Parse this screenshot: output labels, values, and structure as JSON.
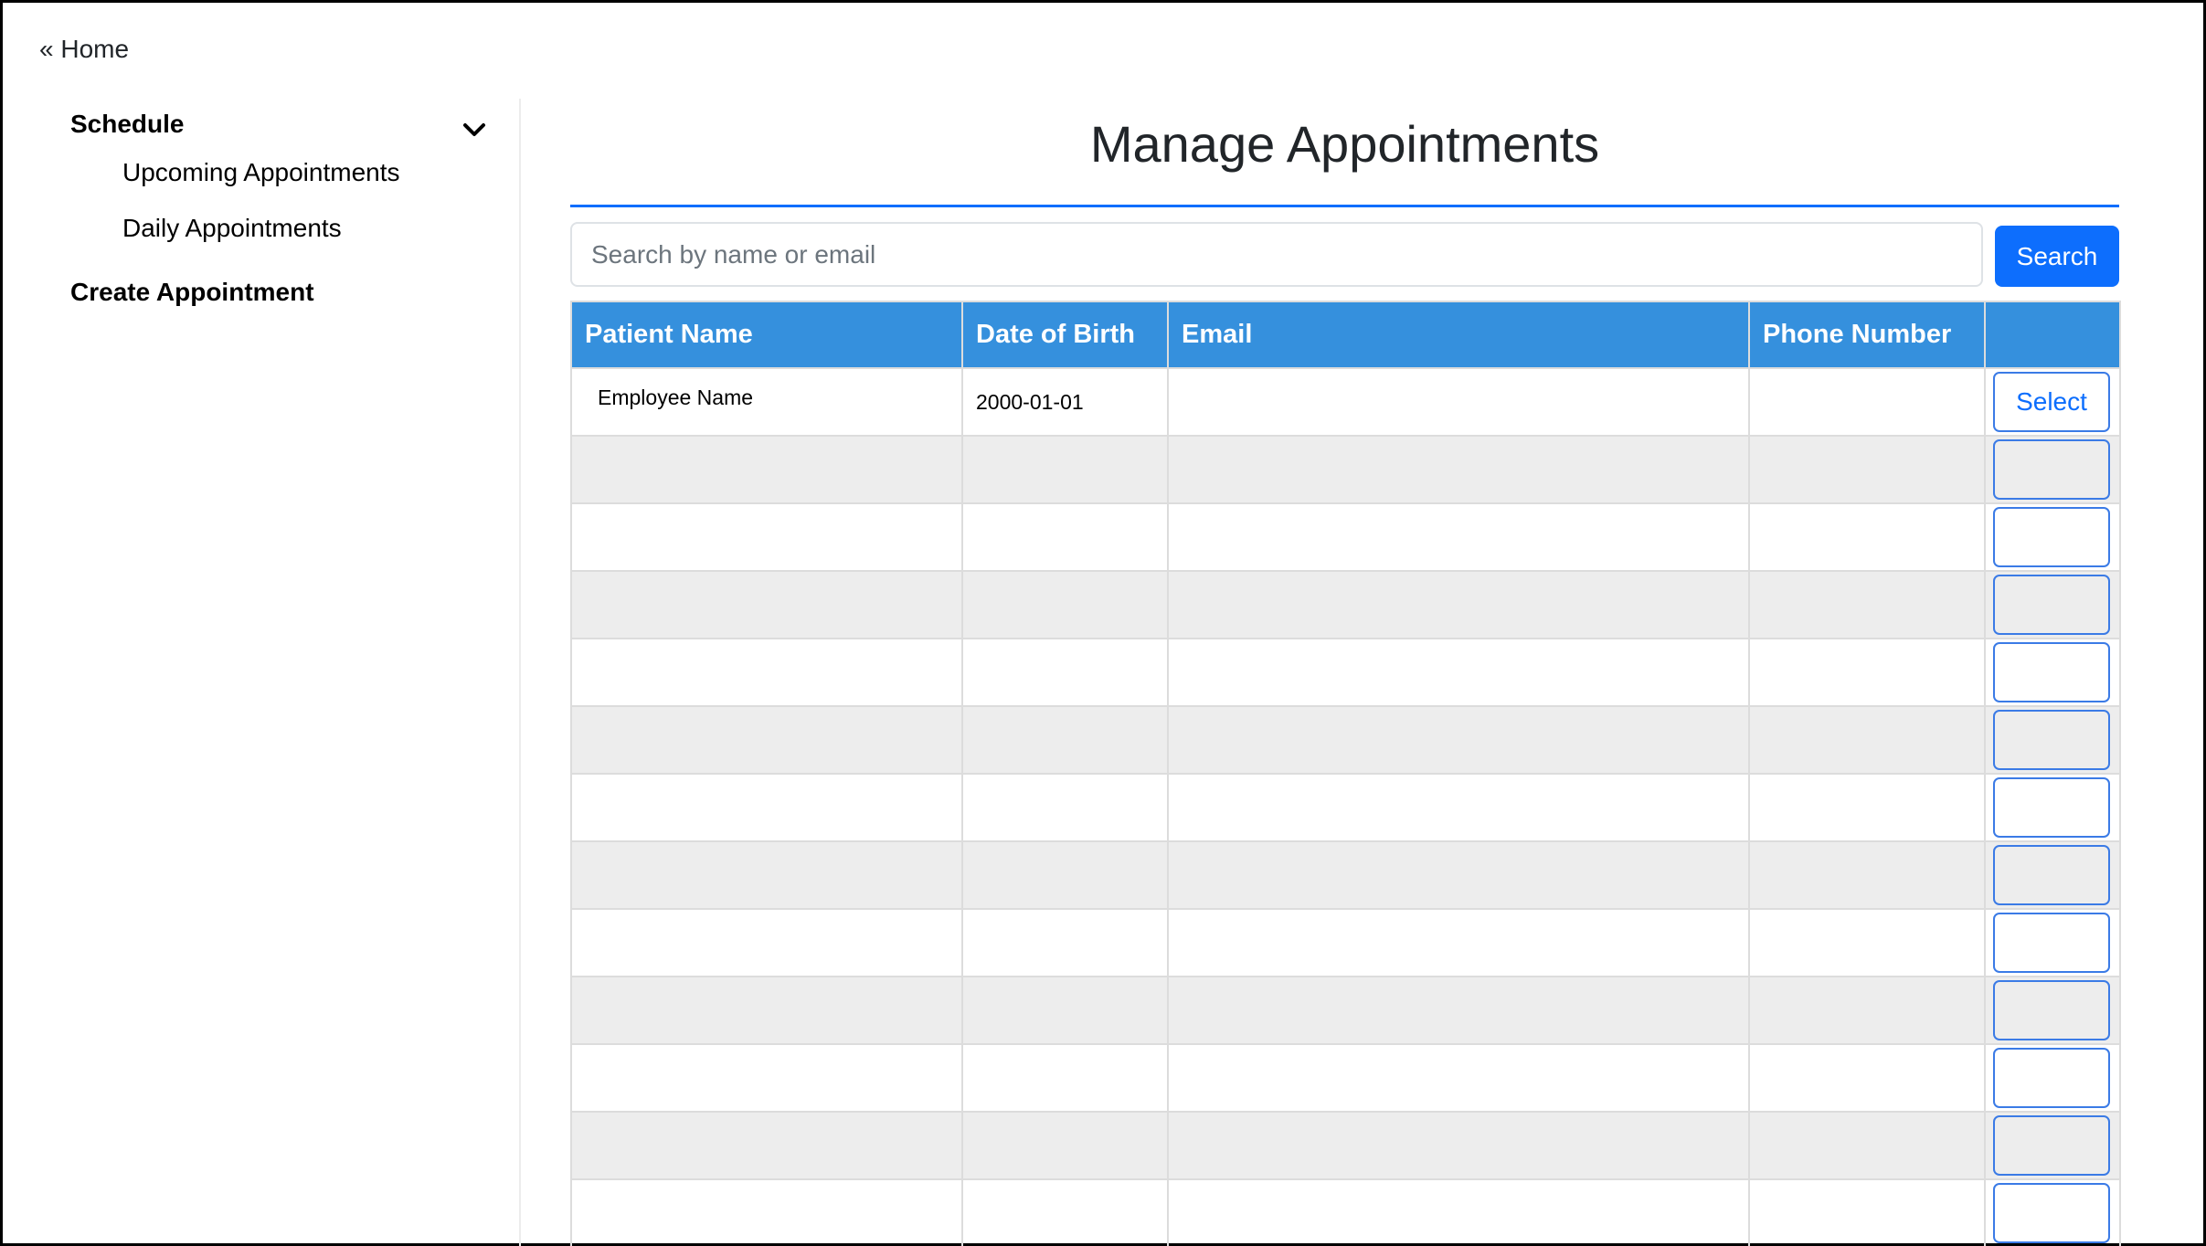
{
  "nav": {
    "home_link": "« Home"
  },
  "sidebar": {
    "schedule": {
      "label": "Schedule",
      "icon": "chevron-down-icon",
      "items": [
        {
          "label": "Upcoming Appointments"
        },
        {
          "label": "Daily Appointments"
        }
      ]
    },
    "create": {
      "label": "Create Appointment"
    }
  },
  "main": {
    "title": "Manage Appointments",
    "search": {
      "placeholder": "Search by name or email",
      "value": "",
      "button_label": "Search"
    },
    "table": {
      "columns": [
        "Patient Name",
        "Date of Birth",
        "Email",
        "Phone Number",
        ""
      ],
      "rows": [
        {
          "name": "Employee Name",
          "dob": "2000-01-01",
          "email": "",
          "phone": "",
          "action": "Select"
        },
        {
          "name": "",
          "dob": "",
          "email": "",
          "phone": "",
          "action": ""
        },
        {
          "name": "",
          "dob": "",
          "email": "",
          "phone": "",
          "action": ""
        },
        {
          "name": "",
          "dob": "",
          "email": "",
          "phone": "",
          "action": ""
        },
        {
          "name": "",
          "dob": "",
          "email": "",
          "phone": "",
          "action": ""
        },
        {
          "name": "",
          "dob": "",
          "email": "",
          "phone": "",
          "action": ""
        },
        {
          "name": "",
          "dob": "",
          "email": "",
          "phone": "",
          "action": ""
        },
        {
          "name": "",
          "dob": "",
          "email": "",
          "phone": "",
          "action": ""
        },
        {
          "name": "",
          "dob": "",
          "email": "",
          "phone": "",
          "action": ""
        },
        {
          "name": "",
          "dob": "",
          "email": "",
          "phone": "",
          "action": ""
        },
        {
          "name": "",
          "dob": "",
          "email": "",
          "phone": "",
          "action": ""
        },
        {
          "name": "",
          "dob": "",
          "email": "",
          "phone": "",
          "action": ""
        },
        {
          "name": "",
          "dob": "",
          "email": "",
          "phone": "",
          "action": ""
        }
      ]
    }
  },
  "colors": {
    "accent": "#0d6efd",
    "table_header": "#3590dd",
    "row_alt": "#ededed"
  }
}
